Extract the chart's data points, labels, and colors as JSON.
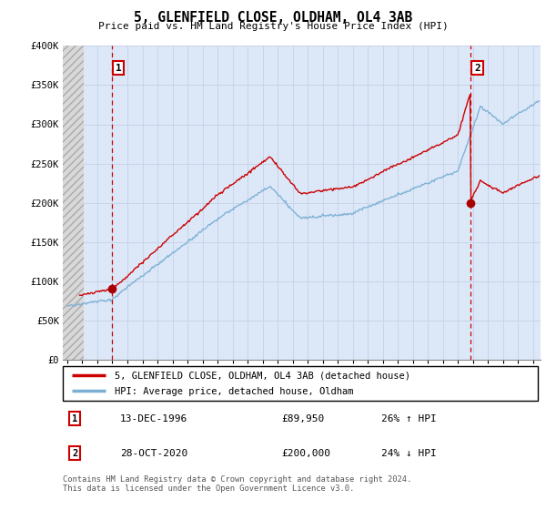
{
  "title": "5, GLENFIELD CLOSE, OLDHAM, OL4 3AB",
  "subtitle": "Price paid vs. HM Land Registry's House Price Index (HPI)",
  "ylim": [
    0,
    400000
  ],
  "xlim_start": 1993.7,
  "xlim_end": 2025.5,
  "hatch_end": 1995.08,
  "transaction1_date_x": 1996.95,
  "transaction1_price": 89950,
  "transaction2_date_x": 2020.83,
  "transaction2_price": 200000,
  "legend_line1": "5, GLENFIELD CLOSE, OLDHAM, OL4 3AB (detached house)",
  "legend_line2": "HPI: Average price, detached house, Oldham",
  "table_row1_num": "1",
  "table_row1_date": "13-DEC-1996",
  "table_row1_price": "£89,950",
  "table_row1_hpi": "26% ↑ HPI",
  "table_row2_num": "2",
  "table_row2_date": "28-OCT-2020",
  "table_row2_price": "£200,000",
  "table_row2_hpi": "24% ↓ HPI",
  "footer": "Contains HM Land Registry data © Crown copyright and database right 2024.\nThis data is licensed under the Open Government Licence v3.0.",
  "grid_color": "#c8d4e8",
  "bg_color": "#dce8f8",
  "red_line_color": "#cc0000",
  "blue_line_color": "#7bafd4",
  "dot_color": "#aa0000",
  "vline_color": "#cc0000",
  "hatch_facecolor": "#d8d8d8",
  "hatch_edgecolor": "#aaaaaa"
}
